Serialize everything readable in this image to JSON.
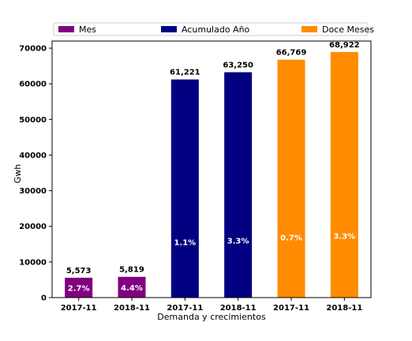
{
  "chart_data": {
    "type": "bar",
    "categories": [
      "2017-11",
      "2018-11",
      "2017-11",
      "2018-11",
      "2017-11",
      "2018-11"
    ],
    "series": [
      {
        "name": "Mes",
        "color": "#800080",
        "bars": [
          {
            "category_index": 0,
            "value": 5573,
            "value_label": "5,573",
            "growth_label": "2.7%"
          },
          {
            "category_index": 1,
            "value": 5819,
            "value_label": "5,819",
            "growth_label": "4.4%"
          }
        ]
      },
      {
        "name": "Acumulado Año",
        "color": "#000080",
        "bars": [
          {
            "category_index": 2,
            "value": 61221,
            "value_label": "61,221",
            "growth_label": "1.1%"
          },
          {
            "category_index": 3,
            "value": 63250,
            "value_label": "63,250",
            "growth_label": "3.3%"
          }
        ]
      },
      {
        "name": "Doce Meses",
        "color": "#ff8c00",
        "bars": [
          {
            "category_index": 4,
            "value": 66769,
            "value_label": "66,769",
            "growth_label": "0.7%"
          },
          {
            "category_index": 5,
            "value": 68922,
            "value_label": "68,922",
            "growth_label": "3.3%"
          }
        ]
      }
    ],
    "xlabel": "Demanda y crecimientos",
    "ylabel": "Gwh",
    "ylim": [
      0,
      72000
    ],
    "yticks": [
      0,
      10000,
      20000,
      30000,
      40000,
      50000,
      60000,
      70000
    ],
    "grid": false,
    "legend_position": "top"
  }
}
